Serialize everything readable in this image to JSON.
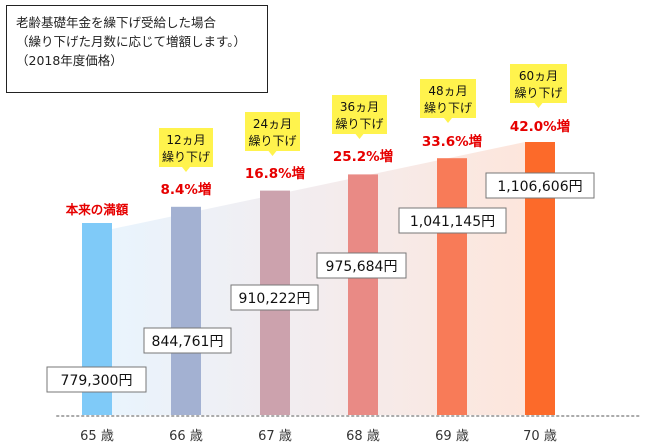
{
  "note": {
    "line1": "老齢基礎年金を繰下げ受給した場合",
    "line2": "（繰り下げた月数に応じて増額します。）",
    "line3": "（2018年度価格）"
  },
  "chart_data": {
    "type": "bar",
    "categories": [
      "65 歳",
      "66 歳",
      "67 歳",
      "68 歳",
      "69 歳",
      "70 歳"
    ],
    "values": [
      779300,
      844761,
      910222,
      975684,
      1041145,
      1106606
    ],
    "value_labels": [
      "779,300円",
      "844,761円",
      "910,222円",
      "975,684円",
      "1,041,145円",
      "1,106,606円"
    ],
    "increase_labels": [
      "本来の満額",
      "8.4%増",
      "16.8%増",
      "25.2%増",
      "33.6%増",
      "42.0%増"
    ],
    "deferral_labels": [
      "",
      "12ヵ月\n繰り下げ",
      "24ヵ月\n繰り下げ",
      "36ヵ月\n繰り下げ",
      "48ヵ月\n繰り下げ",
      "60ヵ月\n繰り下げ"
    ],
    "bar_colors": [
      "#7fcaf8",
      "#a3b1d2",
      "#cca2ad",
      "#e98a85",
      "#f87b58",
      "#fc6a2a"
    ],
    "colors": {
      "increase_text": "#e60000",
      "callout_bg": "#fff34d",
      "baseline": "#aaaaaa",
      "label_border": "#777777"
    }
  }
}
